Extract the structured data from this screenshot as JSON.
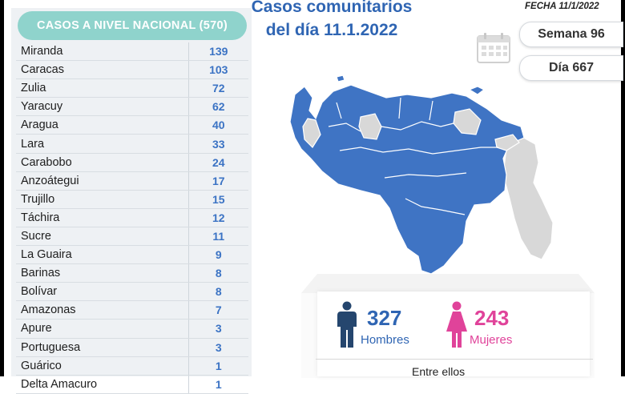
{
  "header": {
    "title": "CASOS A NIVEL NACIONAL",
    "total": "(570)"
  },
  "rows": [
    {
      "name": "Miranda",
      "value": "139"
    },
    {
      "name": "Caracas",
      "value": "103"
    },
    {
      "name": "Zulia",
      "value": "72"
    },
    {
      "name": "Yaracuy",
      "value": "62"
    },
    {
      "name": "Aragua",
      "value": "40"
    },
    {
      "name": "Lara",
      "value": "33"
    },
    {
      "name": "Carabobo",
      "value": "24"
    },
    {
      "name": "Anzoátegui",
      "value": "17"
    },
    {
      "name": "Trujillo",
      "value": "15"
    },
    {
      "name": "Táchira",
      "value": "12"
    },
    {
      "name": "Sucre",
      "value": "11"
    },
    {
      "name": "La Guaira",
      "value": "9"
    },
    {
      "name": "Barinas",
      "value": "8"
    },
    {
      "name": "Bolívar",
      "value": "8"
    },
    {
      "name": "Amazonas",
      "value": "7"
    },
    {
      "name": "Apure",
      "value": "3"
    },
    {
      "name": "Portuguesa",
      "value": "3"
    },
    {
      "name": "Guárico",
      "value": "1"
    },
    {
      "name": "Delta Amacuro",
      "value": "1"
    }
  ],
  "title": {
    "line1": "Casos comunitarios",
    "line2": "del día 11.1.2022"
  },
  "fecha": "FECHA 11/1/2022",
  "semana": "Semana 96",
  "dia": "Día 667",
  "stats": {
    "hombres_count": "327",
    "hombres_label": "Hombres",
    "mujeres_count": "243",
    "mujeres_label": "Mujeres",
    "entre": "Entre ellos"
  },
  "colors": {
    "map_blue": "#3f74c4",
    "map_gray": "#d8d8d8",
    "header_teal": "#8fd3cc",
    "hombres": "#2f65b3",
    "mujeres": "#e0439a"
  },
  "icons": [
    "calendar-icon",
    "man-icon",
    "woman-icon"
  ]
}
